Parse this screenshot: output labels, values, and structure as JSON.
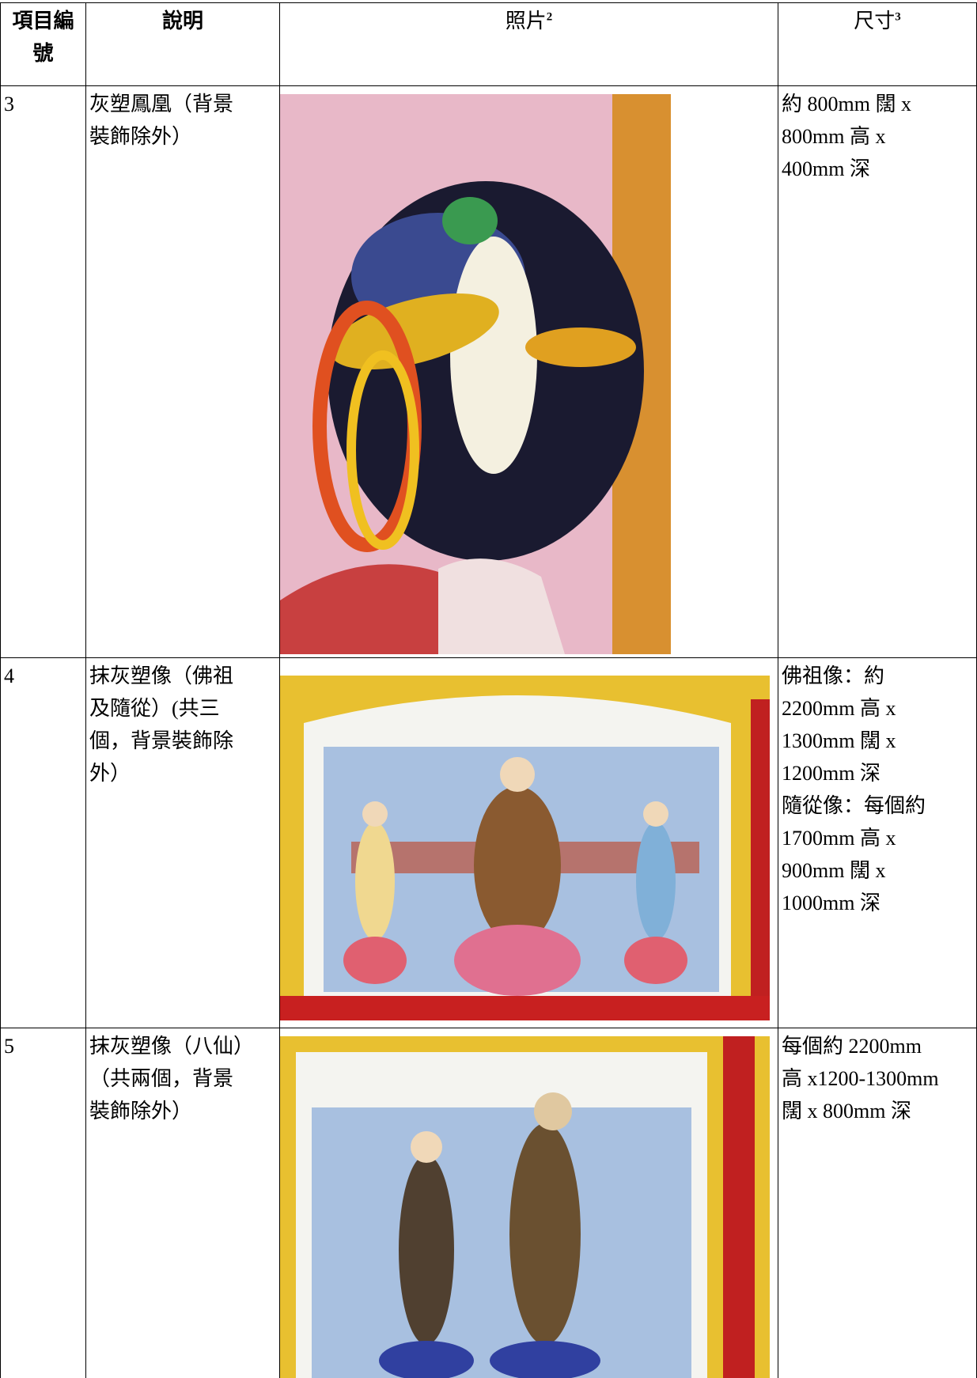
{
  "table": {
    "headers": [
      {
        "text": "項目編號"
      },
      {
        "text": "說明"
      },
      {
        "text": "照片",
        "note": "2"
      },
      {
        "text": "尺寸",
        "note": "3"
      }
    ],
    "rows": [
      {
        "item": "3",
        "description": [
          "灰塑鳳凰（背景",
          "裝飾除外）"
        ],
        "size": [
          "約 800mm 闊 x",
          "800mm 高 x",
          "400mm 深"
        ]
      },
      {
        "item": "4",
        "description": [
          "抹灰塑像（佛祖",
          "及隨從）(共三",
          "個，背景裝飾除",
          "外）"
        ],
        "size": [
          "佛祖像：約",
          "2200mm 高 x",
          "1300mm 闊 x",
          "1200mm 深",
          "隨從像：每個約",
          "1700mm 高 x",
          "900mm 闊 x",
          "1000mm 深"
        ]
      },
      {
        "item": "5",
        "description": [
          "抹灰塑像（八仙）",
          "（共兩個，背景",
          "裝飾除外）"
        ],
        "size": [
          "每個約 2200mm",
          "高 x1200-1300mm",
          "闊 x 800mm 深"
        ]
      }
    ]
  }
}
